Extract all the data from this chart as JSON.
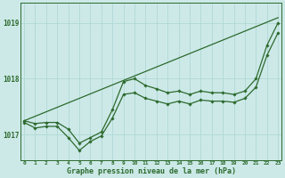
{
  "title": "Graphe pression niveau de la mer (hPa)",
  "xlabel_ticks": [
    0,
    1,
    2,
    3,
    4,
    5,
    6,
    7,
    8,
    9,
    10,
    11,
    12,
    13,
    14,
    15,
    16,
    17,
    18,
    19,
    20,
    21,
    22,
    23
  ],
  "yticks": [
    1017,
    1018,
    1019
  ],
  "ylim": [
    1016.55,
    1019.35
  ],
  "xlim": [
    -0.3,
    23.3
  ],
  "bg_color": "#cce9e8",
  "grid_color": "#b0d8d6",
  "line_color": "#2d6a2d",
  "line_straight": [
    1017.25,
    1017.33,
    1017.41,
    1017.49,
    1017.57,
    1017.65,
    1017.73,
    1017.81,
    1017.89,
    1017.97,
    1018.05,
    1018.13,
    1018.21,
    1018.29,
    1018.37,
    1018.45,
    1018.53,
    1018.61,
    1018.69,
    1018.77,
    1018.85,
    1018.93,
    1019.01,
    1019.09
  ],
  "line_top": [
    1017.25,
    1017.2,
    1017.22,
    1017.22,
    1017.1,
    1016.85,
    1016.95,
    1017.05,
    1017.45,
    1017.95,
    1018.0,
    1017.88,
    1017.82,
    1017.75,
    1017.78,
    1017.72,
    1017.78,
    1017.75,
    1017.75,
    1017.72,
    1017.78,
    1018.0,
    1018.6,
    1019.0
  ],
  "line_mid": [
    1017.22,
    1017.12,
    1017.15,
    1017.15,
    1016.95,
    1016.72,
    1016.88,
    1016.98,
    1017.3,
    1017.72,
    1017.75,
    1017.65,
    1017.6,
    1017.55,
    1017.6,
    1017.55,
    1017.62,
    1017.6,
    1017.6,
    1017.58,
    1017.65,
    1017.85,
    1018.42,
    1018.82
  ],
  "figwidth": 3.2,
  "figheight": 2.0,
  "dpi": 100
}
